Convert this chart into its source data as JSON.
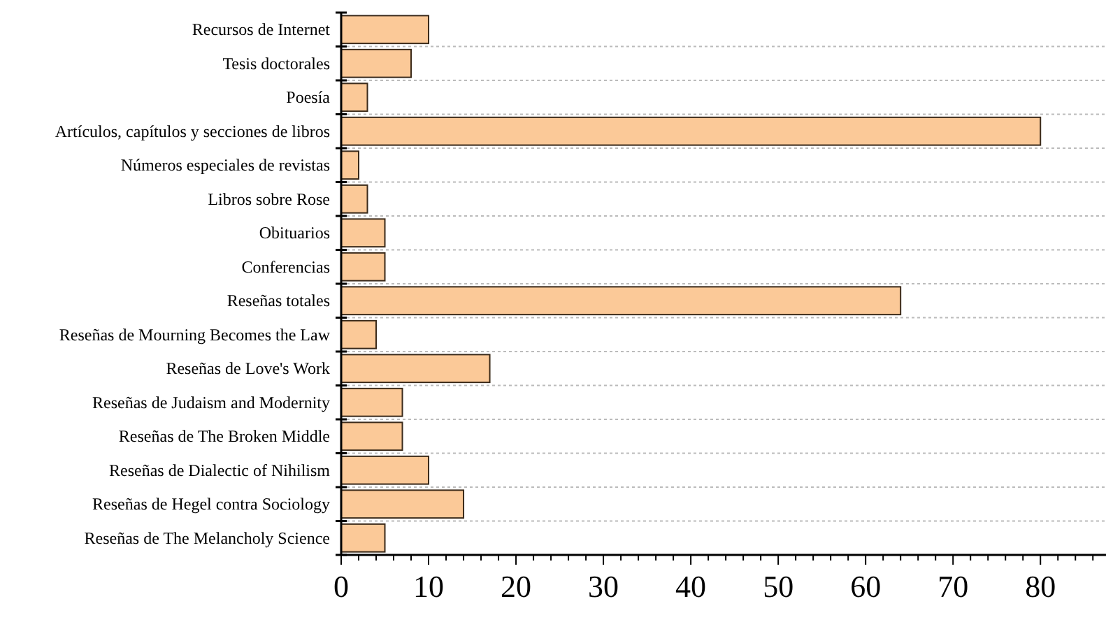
{
  "chart_data": {
    "type": "bar",
    "orientation": "horizontal",
    "categories": [
      "Recursos de Internet",
      "Tesis doctorales",
      "Poesía",
      "Artículos, capítulos y secciones de libros",
      "Números especiales de revistas",
      "Libros sobre Rose",
      "Obituarios",
      "Conferencias",
      "Reseñas totales",
      "Reseñas de Mourning Becomes the Law",
      "Reseñas de Love's Work",
      "Reseñas de Judaism and Modernity",
      "Reseñas de The Broken Middle",
      "Reseñas de Dialectic of Nihilism",
      "Reseñas de Hegel contra Sociology",
      "Reseñas de The Melancholy Science"
    ],
    "values": [
      10,
      8,
      3,
      80,
      2,
      3,
      5,
      5,
      64,
      4,
      17,
      7,
      7,
      10,
      14,
      5
    ],
    "color": "#fbc998",
    "xlim": [
      0,
      87.5
    ],
    "xticks": [
      0,
      {
        "value": 2,
        "label": null
      },
      {
        "value": 4,
        "label": null
      },
      {
        "value": 6,
        "label": null
      },
      {
        "value": 8,
        "label": null
      },
      10,
      {
        "value": 12,
        "label": null
      },
      {
        "value": 14,
        "label": null
      },
      {
        "value": 16,
        "label": null
      },
      {
        "value": 18,
        "label": null
      },
      20,
      {
        "value": 22,
        "label": null
      },
      {
        "value": 24,
        "label": null
      },
      {
        "value": 26,
        "label": null
      },
      {
        "value": 28,
        "label": null
      },
      30,
      {
        "value": 32,
        "label": null
      },
      {
        "value": 34,
        "label": null
      },
      {
        "value": 36,
        "label": null
      },
      {
        "value": 38,
        "label": null
      },
      40,
      {
        "value": 42,
        "label": null
      },
      {
        "value": 44,
        "label": null
      },
      {
        "value": 46,
        "label": null
      },
      {
        "value": 48,
        "label": null
      },
      50,
      {
        "value": 52,
        "label": null
      },
      {
        "value": 54,
        "label": null
      },
      {
        "value": 56,
        "label": null
      },
      {
        "value": 58,
        "label": null
      },
      60,
      {
        "value": 62,
        "label": null
      },
      {
        "value": 64,
        "label": null
      },
      {
        "value": 66,
        "label": null
      },
      {
        "value": 68,
        "label": null
      },
      70,
      {
        "value": 72,
        "label": null
      },
      {
        "value": 74,
        "label": null
      },
      {
        "value": 76,
        "label": null
      },
      {
        "value": 78,
        "label": null
      },
      80,
      {
        "value": 82,
        "label": null
      },
      {
        "value": 84,
        "label": null
      },
      {
        "value": 86,
        "label": null
      }
    ],
    "grid": "y"
  }
}
